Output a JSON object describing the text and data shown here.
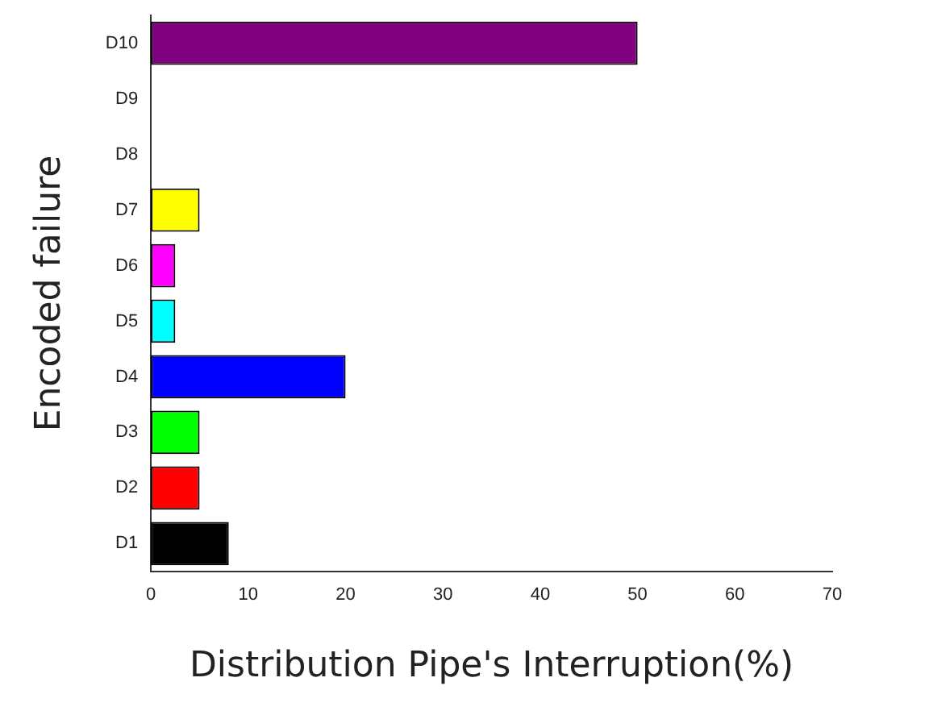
{
  "chart_data": {
    "type": "bar",
    "orientation": "horizontal",
    "xlabel": "Distribution Pipe's Interruption(%)",
    "ylabel": "Encoded failure",
    "categories": [
      "D10",
      "D9",
      "D8",
      "D7",
      "D6",
      "D5",
      "D4",
      "D3",
      "D2",
      "D1"
    ],
    "values": [
      50,
      0,
      0,
      5,
      2.5,
      2.5,
      20,
      5,
      5,
      8
    ],
    "colors": [
      "#800080",
      "#ffffff",
      "#ffffff",
      "#ffff00",
      "#ff00ff",
      "#00ffff",
      "#0000ff",
      "#00ff00",
      "#ff0000",
      "#000000"
    ],
    "xlim": [
      0,
      70
    ],
    "xticks": [
      0,
      10,
      20,
      30,
      40,
      50,
      60,
      70
    ],
    "legend": false
  }
}
